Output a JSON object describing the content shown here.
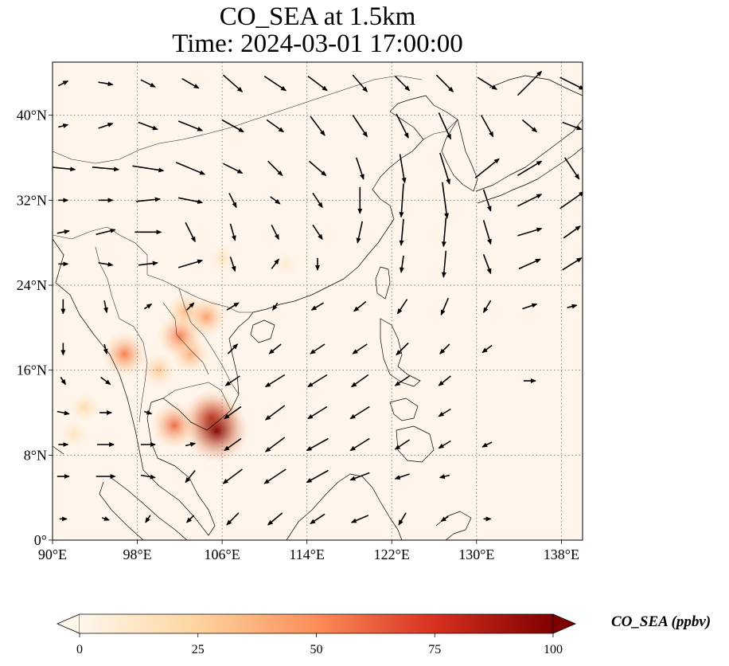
{
  "title": {
    "line1": "CO_SEA at 1.5km",
    "line2": "Time: 2024-03-01 17:00:00"
  },
  "map": {
    "projection": "PlateCarree",
    "lon_range": [
      90,
      140
    ],
    "lat_range": [
      0,
      45
    ],
    "background_color": "#fff5ea",
    "gridlines": "dotted",
    "lon_ticks": [
      {
        "value": 90,
        "label": "90°E"
      },
      {
        "value": 98,
        "label": "98°E"
      },
      {
        "value": 106,
        "label": "106°E"
      },
      {
        "value": 114,
        "label": "114°E"
      },
      {
        "value": 122,
        "label": "122°E"
      },
      {
        "value": 130,
        "label": "130°E"
      },
      {
        "value": 138,
        "label": "138°E"
      }
    ],
    "lat_ticks": [
      {
        "value": 0,
        "label": "0°"
      },
      {
        "value": 8,
        "label": "8°N"
      },
      {
        "value": 16,
        "label": "16°N"
      },
      {
        "value": 24,
        "label": "24°N"
      },
      {
        "value": 32,
        "label": "32°N"
      },
      {
        "value": 40,
        "label": "40°N"
      }
    ]
  },
  "colorbar": {
    "label": "CO_SEA (ppbv)",
    "colormap": "OrRd",
    "range": [
      0,
      100
    ],
    "extend": "both",
    "ticks": [
      {
        "value": 0,
        "label": "0"
      },
      {
        "value": 25,
        "label": "25"
      },
      {
        "value": 50,
        "label": "50"
      },
      {
        "value": 75,
        "label": "75"
      },
      {
        "value": 100,
        "label": "100"
      }
    ],
    "colors": [
      "#fff7ec",
      "#fdd49e",
      "#fc8d59",
      "#d7301f",
      "#7f0000"
    ]
  },
  "co_hotspots": [
    {
      "lon": 103.0,
      "lat": 17.5,
      "value": 40
    },
    {
      "lon": 102.5,
      "lat": 21.5,
      "value": 35
    },
    {
      "lon": 100.0,
      "lat": 16.0,
      "value": 30
    },
    {
      "lon": 96.8,
      "lat": 17.5,
      "value": 55
    },
    {
      "lon": 105.0,
      "lat": 11.5,
      "value": 85
    },
    {
      "lon": 105.5,
      "lat": 10.3,
      "value": 100
    },
    {
      "lon": 101.5,
      "lat": 10.8,
      "value": 60
    },
    {
      "lon": 104.5,
      "lat": 21.0,
      "value": 45
    },
    {
      "lon": 102.0,
      "lat": 19.2,
      "value": 55
    },
    {
      "lon": 106.0,
      "lat": 26.5,
      "value": 15
    },
    {
      "lon": 112.0,
      "lat": 26.0,
      "value": 10
    },
    {
      "lon": 93.0,
      "lat": 12.5,
      "value": 20
    },
    {
      "lon": 92.0,
      "lat": 10.0,
      "value": 15
    }
  ],
  "wind_vectors": [
    {
      "lon": 91.0,
      "lat": 43.0,
      "u": 0.4,
      "v": 0.2
    },
    {
      "lon": 95.0,
      "lat": 43.0,
      "u": 0.6,
      "v": -0.1
    },
    {
      "lon": 99.0,
      "lat": 43.0,
      "u": 0.6,
      "v": -0.3
    },
    {
      "lon": 103.0,
      "lat": 43.0,
      "u": 0.7,
      "v": -0.4
    },
    {
      "lon": 107.0,
      "lat": 43.0,
      "u": 0.8,
      "v": -0.7
    },
    {
      "lon": 111.0,
      "lat": 43.0,
      "u": 0.9,
      "v": -0.6
    },
    {
      "lon": 115.0,
      "lat": 43.0,
      "u": 0.8,
      "v": -0.6
    },
    {
      "lon": 119.0,
      "lat": 43.0,
      "u": 0.6,
      "v": -0.7
    },
    {
      "lon": 123.0,
      "lat": 43.0,
      "u": 0.6,
      "v": -0.6
    },
    {
      "lon": 127.0,
      "lat": 43.0,
      "u": 0.7,
      "v": -0.7
    },
    {
      "lon": 131.0,
      "lat": 43.0,
      "u": 0.8,
      "v": -0.5
    },
    {
      "lon": 135.0,
      "lat": 43.0,
      "u": 1.0,
      "v": 1.0
    },
    {
      "lon": 139.0,
      "lat": 43.0,
      "u": 1.0,
      "v": -0.5
    },
    {
      "lon": 91.0,
      "lat": 39.0,
      "u": 0.4,
      "v": 0.1
    },
    {
      "lon": 95.0,
      "lat": 39.0,
      "u": 0.6,
      "v": 0.2
    },
    {
      "lon": 99.0,
      "lat": 39.0,
      "u": 0.8,
      "v": -0.3
    },
    {
      "lon": 103.0,
      "lat": 39.0,
      "u": 1.0,
      "v": -0.4
    },
    {
      "lon": 107.0,
      "lat": 39.0,
      "u": 0.9,
      "v": -0.5
    },
    {
      "lon": 111.0,
      "lat": 39.0,
      "u": 0.7,
      "v": -0.5
    },
    {
      "lon": 115.0,
      "lat": 39.0,
      "u": 0.6,
      "v": -0.8
    },
    {
      "lon": 119.0,
      "lat": 39.0,
      "u": 0.6,
      "v": -0.9
    },
    {
      "lon": 123.0,
      "lat": 39.0,
      "u": 0.5,
      "v": -1.0
    },
    {
      "lon": 127.0,
      "lat": 39.0,
      "u": 0.5,
      "v": -1.1
    },
    {
      "lon": 131.0,
      "lat": 39.0,
      "u": 0.5,
      "v": -0.9
    },
    {
      "lon": 135.0,
      "lat": 39.0,
      "u": 0.6,
      "v": -0.5
    },
    {
      "lon": 139.0,
      "lat": 39.0,
      "u": 0.8,
      "v": -0.3
    },
    {
      "lon": 91.0,
      "lat": 35.0,
      "u": 1.0,
      "v": -0.1
    },
    {
      "lon": 95.0,
      "lat": 35.0,
      "u": 1.1,
      "v": -0.1
    },
    {
      "lon": 99.0,
      "lat": 35.0,
      "u": 1.3,
      "v": -0.2
    },
    {
      "lon": 103.0,
      "lat": 35.0,
      "u": 1.2,
      "v": -0.5
    },
    {
      "lon": 107.0,
      "lat": 35.0,
      "u": 0.8,
      "v": -0.4
    },
    {
      "lon": 111.0,
      "lat": 35.0,
      "u": 0.6,
      "v": -0.6
    },
    {
      "lon": 115.0,
      "lat": 35.0,
      "u": 0.7,
      "v": -0.6
    },
    {
      "lon": 119.0,
      "lat": 35.0,
      "u": 0.3,
      "v": -0.9
    },
    {
      "lon": 123.0,
      "lat": 35.0,
      "u": 0.2,
      "v": -1.2
    },
    {
      "lon": 127.0,
      "lat": 35.0,
      "u": 0.4,
      "v": -1.3
    },
    {
      "lon": 131.0,
      "lat": 35.0,
      "u": 1.0,
      "v": 0.8
    },
    {
      "lon": 135.0,
      "lat": 35.0,
      "u": 1.0,
      "v": 0.6
    },
    {
      "lon": 139.0,
      "lat": 35.0,
      "u": 0.6,
      "v": -0.9
    },
    {
      "lon": 91.0,
      "lat": 32.0,
      "u": 0.4,
      "v": 0.0
    },
    {
      "lon": 95.0,
      "lat": 32.0,
      "u": 0.6,
      "v": 0.0
    },
    {
      "lon": 99.0,
      "lat": 32.0,
      "u": 1.0,
      "v": 0.1
    },
    {
      "lon": 103.0,
      "lat": 32.0,
      "u": 1.0,
      "v": -0.2
    },
    {
      "lon": 107.0,
      "lat": 32.0,
      "u": 0.3,
      "v": -0.6
    },
    {
      "lon": 111.0,
      "lat": 32.0,
      "u": 0.4,
      "v": -0.3
    },
    {
      "lon": 115.0,
      "lat": 32.0,
      "u": 0.4,
      "v": -0.6
    },
    {
      "lon": 119.0,
      "lat": 32.0,
      "u": 0.0,
      "v": -1.1
    },
    {
      "lon": 123.0,
      "lat": 32.0,
      "u": -0.1,
      "v": -1.4
    },
    {
      "lon": 127.0,
      "lat": 32.0,
      "u": 0.2,
      "v": -1.5
    },
    {
      "lon": 131.0,
      "lat": 32.0,
      "u": 0.3,
      "v": -0.9
    },
    {
      "lon": 135.0,
      "lat": 32.0,
      "u": 1.0,
      "v": 0.5
    },
    {
      "lon": 139.0,
      "lat": 32.0,
      "u": 1.0,
      "v": 0.7
    },
    {
      "lon": 91.0,
      "lat": 29.0,
      "u": 0.5,
      "v": 0.1
    },
    {
      "lon": 95.0,
      "lat": 29.0,
      "u": 0.8,
      "v": 0.2
    },
    {
      "lon": 99.0,
      "lat": 29.0,
      "u": 1.1,
      "v": 0.0
    },
    {
      "lon": 103.0,
      "lat": 29.0,
      "u": 0.4,
      "v": -0.8
    },
    {
      "lon": 107.0,
      "lat": 29.0,
      "u": 0.2,
      "v": -0.7
    },
    {
      "lon": 111.0,
      "lat": 29.0,
      "u": 0.3,
      "v": -0.6
    },
    {
      "lon": 115.0,
      "lat": 29.0,
      "u": 0.4,
      "v": -0.6
    },
    {
      "lon": 119.0,
      "lat": 29.0,
      "u": -0.2,
      "v": -0.9
    },
    {
      "lon": 123.0,
      "lat": 29.0,
      "u": -0.1,
      "v": -1.1
    },
    {
      "lon": 127.0,
      "lat": 29.0,
      "u": -0.1,
      "v": -1.2
    },
    {
      "lon": 131.0,
      "lat": 29.0,
      "u": 0.3,
      "v": -1.0
    },
    {
      "lon": 135.0,
      "lat": 29.0,
      "u": 1.0,
      "v": 0.3
    },
    {
      "lon": 139.0,
      "lat": 29.0,
      "u": 0.7,
      "v": 0.5
    },
    {
      "lon": 91.0,
      "lat": 26.0,
      "u": 0.4,
      "v": 0.0
    },
    {
      "lon": 95.0,
      "lat": 26.0,
      "u": 0.6,
      "v": -0.1
    },
    {
      "lon": 99.0,
      "lat": 26.0,
      "u": 0.8,
      "v": 0.1
    },
    {
      "lon": 103.0,
      "lat": 26.0,
      "u": 1.0,
      "v": 0.3
    },
    {
      "lon": 107.0,
      "lat": 26.0,
      "u": 0.2,
      "v": -0.6
    },
    {
      "lon": 111.0,
      "lat": 26.0,
      "u": 0.3,
      "v": 0.4
    },
    {
      "lon": 115.0,
      "lat": 26.0,
      "u": 0.0,
      "v": -0.5
    },
    {
      "lon": 123.0,
      "lat": 26.0,
      "u": -0.1,
      "v": -0.7
    },
    {
      "lon": 127.0,
      "lat": 26.0,
      "u": -0.1,
      "v": -1.1
    },
    {
      "lon": 131.0,
      "lat": 26.0,
      "u": 0.3,
      "v": -0.8
    },
    {
      "lon": 135.0,
      "lat": 26.0,
      "u": 0.9,
      "v": 0.4
    },
    {
      "lon": 139.0,
      "lat": 26.0,
      "u": 0.8,
      "v": 0.5
    },
    {
      "lon": 91.0,
      "lat": 22.0,
      "u": 0.0,
      "v": -0.6
    },
    {
      "lon": 95.0,
      "lat": 22.0,
      "u": 0.1,
      "v": -0.5
    },
    {
      "lon": 99.0,
      "lat": 22.0,
      "u": 0.3,
      "v": 0.2
    },
    {
      "lon": 103.0,
      "lat": 22.0,
      "u": 0.3,
      "v": 0.3
    },
    {
      "lon": 107.0,
      "lat": 22.0,
      "u": 0.5,
      "v": 0.3
    },
    {
      "lon": 111.0,
      "lat": 22.0,
      "u": -0.2,
      "v": -0.3
    },
    {
      "lon": 115.0,
      "lat": 22.0,
      "u": -0.5,
      "v": -0.3
    },
    {
      "lon": 119.0,
      "lat": 22.0,
      "u": -0.5,
      "v": -0.4
    },
    {
      "lon": 123.0,
      "lat": 22.0,
      "u": -0.4,
      "v": -0.6
    },
    {
      "lon": 127.0,
      "lat": 22.0,
      "u": -0.3,
      "v": -0.7
    },
    {
      "lon": 131.0,
      "lat": 22.0,
      "u": -0.3,
      "v": -0.5
    },
    {
      "lon": 135.0,
      "lat": 22.0,
      "u": 0.6,
      "v": 0.2
    },
    {
      "lon": 139.0,
      "lat": 22.0,
      "u": 0.4,
      "v": 0.1
    },
    {
      "lon": 91.0,
      "lat": 18.0,
      "u": 0.0,
      "v": -0.5
    },
    {
      "lon": 95.0,
      "lat": 18.0,
      "u": 0.1,
      "v": -0.4
    },
    {
      "lon": 107.0,
      "lat": 18.0,
      "u": 0.4,
      "v": 0.4
    },
    {
      "lon": 111.0,
      "lat": 18.0,
      "u": -0.5,
      "v": -0.4
    },
    {
      "lon": 115.0,
      "lat": 18.0,
      "u": -0.6,
      "v": -0.4
    },
    {
      "lon": 119.0,
      "lat": 18.0,
      "u": -0.6,
      "v": -0.4
    },
    {
      "lon": 123.0,
      "lat": 18.0,
      "u": -0.5,
      "v": -0.5
    },
    {
      "lon": 127.0,
      "lat": 18.0,
      "u": -0.4,
      "v": -0.4
    },
    {
      "lon": 131.0,
      "lat": 18.0,
      "u": -0.4,
      "v": -0.3
    },
    {
      "lon": 91.0,
      "lat": 15.0,
      "u": 0.2,
      "v": -0.3
    },
    {
      "lon": 95.0,
      "lat": 15.0,
      "u": 0.4,
      "v": -0.3
    },
    {
      "lon": 107.0,
      "lat": 15.0,
      "u": -0.6,
      "v": -0.4
    },
    {
      "lon": 111.0,
      "lat": 15.0,
      "u": -0.8,
      "v": -0.5
    },
    {
      "lon": 115.0,
      "lat": 15.0,
      "u": -0.8,
      "v": -0.5
    },
    {
      "lon": 119.0,
      "lat": 15.0,
      "u": -0.7,
      "v": -0.5
    },
    {
      "lon": 123.0,
      "lat": 15.0,
      "u": -0.6,
      "v": -0.4
    },
    {
      "lon": 127.0,
      "lat": 15.0,
      "u": -0.5,
      "v": -0.4
    },
    {
      "lon": 135.0,
      "lat": 15.0,
      "u": 0.5,
      "v": 0.0
    },
    {
      "lon": 91.0,
      "lat": 12.0,
      "u": 0.5,
      "v": -0.1
    },
    {
      "lon": 95.0,
      "lat": 12.0,
      "u": 0.5,
      "v": 0.0
    },
    {
      "lon": 99.0,
      "lat": 12.0,
      "u": 0.3,
      "v": -0.1
    },
    {
      "lon": 107.0,
      "lat": 12.0,
      "u": -0.7,
      "v": -0.5
    },
    {
      "lon": 111.0,
      "lat": 12.0,
      "u": -0.8,
      "v": -0.6
    },
    {
      "lon": 115.0,
      "lat": 12.0,
      "u": -0.8,
      "v": -0.5
    },
    {
      "lon": 119.0,
      "lat": 12.0,
      "u": -0.8,
      "v": -0.5
    },
    {
      "lon": 127.0,
      "lat": 12.0,
      "u": -0.5,
      "v": -0.3
    },
    {
      "lon": 91.0,
      "lat": 9.0,
      "u": 0.4,
      "v": 0.0
    },
    {
      "lon": 95.0,
      "lat": 9.0,
      "u": 0.7,
      "v": 0.0
    },
    {
      "lon": 99.0,
      "lat": 9.0,
      "u": 0.6,
      "v": 0.0
    },
    {
      "lon": 103.0,
      "lat": 9.0,
      "u": 0.4,
      "v": 0.1
    },
    {
      "lon": 107.0,
      "lat": 9.0,
      "u": -0.7,
      "v": -0.5
    },
    {
      "lon": 111.0,
      "lat": 9.0,
      "u": -0.8,
      "v": -0.6
    },
    {
      "lon": 115.0,
      "lat": 9.0,
      "u": -0.9,
      "v": -0.5
    },
    {
      "lon": 119.0,
      "lat": 9.0,
      "u": -0.8,
      "v": -0.5
    },
    {
      "lon": 123.0,
      "lat": 9.0,
      "u": -0.6,
      "v": -0.4
    },
    {
      "lon": 127.0,
      "lat": 9.0,
      "u": -0.5,
      "v": -0.3
    },
    {
      "lon": 131.0,
      "lat": 9.0,
      "u": -0.4,
      "v": -0.2
    },
    {
      "lon": 91.0,
      "lat": 6.0,
      "u": 0.5,
      "v": 0.0
    },
    {
      "lon": 95.0,
      "lat": 6.0,
      "u": 0.8,
      "v": 0.0
    },
    {
      "lon": 99.0,
      "lat": 6.0,
      "u": 0.6,
      "v": -0.1
    },
    {
      "lon": 103.0,
      "lat": 6.0,
      "u": -0.4,
      "v": -0.5
    },
    {
      "lon": 107.0,
      "lat": 6.0,
      "u": -0.8,
      "v": -0.6
    },
    {
      "lon": 111.0,
      "lat": 6.0,
      "u": -0.9,
      "v": -0.6
    },
    {
      "lon": 115.0,
      "lat": 6.0,
      "u": -0.9,
      "v": -0.5
    },
    {
      "lon": 119.0,
      "lat": 6.0,
      "u": -0.8,
      "v": -0.3
    },
    {
      "lon": 123.0,
      "lat": 6.0,
      "u": -0.6,
      "v": -0.2
    },
    {
      "lon": 127.0,
      "lat": 6.0,
      "u": -0.4,
      "v": -0.1
    },
    {
      "lon": 91.0,
      "lat": 2.0,
      "u": 0.3,
      "v": 0.0
    },
    {
      "lon": 95.0,
      "lat": 2.0,
      "u": 0.3,
      "v": -0.1
    },
    {
      "lon": 99.0,
      "lat": 2.0,
      "u": -0.2,
      "v": -0.3
    },
    {
      "lon": 103.0,
      "lat": 2.0,
      "u": -0.3,
      "v": -0.3
    },
    {
      "lon": 107.0,
      "lat": 2.0,
      "u": -0.5,
      "v": -0.5
    },
    {
      "lon": 111.0,
      "lat": 2.0,
      "u": -0.6,
      "v": -0.5
    },
    {
      "lon": 115.0,
      "lat": 2.0,
      "u": -0.6,
      "v": -0.4
    },
    {
      "lon": 119.0,
      "lat": 2.0,
      "u": -0.7,
      "v": -0.3
    },
    {
      "lon": 123.0,
      "lat": 2.0,
      "u": -0.3,
      "v": -0.5
    },
    {
      "lon": 127.0,
      "lat": 2.0,
      "u": -0.3,
      "v": -0.2
    },
    {
      "lon": 131.0,
      "lat": 2.0,
      "u": 0.3,
      "v": 0.0
    }
  ]
}
